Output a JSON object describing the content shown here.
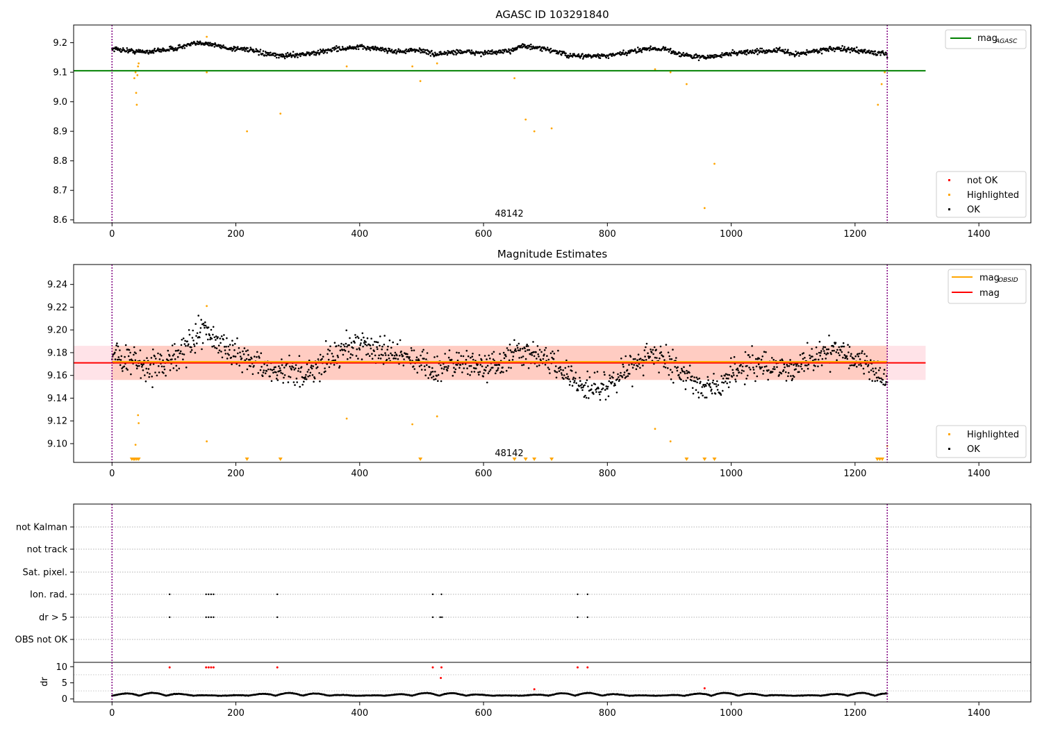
{
  "chart_data": [
    {
      "type": "scatter",
      "title": "AGASC ID 103291840",
      "annotation": "48142",
      "xlim": [
        -62,
        1484
      ],
      "ylim": [
        8.59,
        9.26
      ],
      "xticks": [
        0,
        200,
        400,
        600,
        800,
        1000,
        1200,
        1400
      ],
      "yticks": [
        8.6,
        8.7,
        8.8,
        8.9,
        9.0,
        9.1,
        9.2
      ],
      "ytick_labels": [
        "8.6",
        "8.7",
        "8.8",
        "8.9",
        "9.0",
        "9.1",
        "9.2"
      ],
      "vlines": [
        0,
        1252
      ],
      "line_legend": [
        {
          "main": "mag",
          "sub": "AGASC",
          "color": "#008000"
        }
      ],
      "marker_legend": [
        {
          "label": "not OK",
          "color": "#ff0000"
        },
        {
          "label": "Highlighted",
          "color": "#ffa500"
        },
        {
          "label": "OK",
          "color": "#000000"
        }
      ],
      "hline": {
        "y": 9.105,
        "x": [
          -62,
          1314
        ],
        "color": "#008000"
      },
      "ok_series": {
        "n": 1400,
        "x_range": [
          0,
          1252
        ],
        "wave": [
          [
            0,
            9.18
          ],
          [
            40,
            9.17
          ],
          [
            60,
            9.17
          ],
          [
            100,
            9.18
          ],
          [
            130,
            9.195
          ],
          [
            150,
            9.2
          ],
          [
            170,
            9.19
          ],
          [
            190,
            9.18
          ],
          [
            215,
            9.18
          ],
          [
            240,
            9.165
          ],
          [
            270,
            9.155
          ],
          [
            300,
            9.16
          ],
          [
            330,
            9.165
          ],
          [
            360,
            9.18
          ],
          [
            380,
            9.18
          ],
          [
            400,
            9.185
          ],
          [
            430,
            9.18
          ],
          [
            460,
            9.17
          ],
          [
            500,
            9.175
          ],
          [
            520,
            9.16
          ],
          [
            560,
            9.17
          ],
          [
            600,
            9.165
          ],
          [
            640,
            9.17
          ],
          [
            660,
            9.19
          ],
          [
            690,
            9.18
          ],
          [
            710,
            9.175
          ],
          [
            740,
            9.155
          ],
          [
            800,
            9.155
          ],
          [
            830,
            9.165
          ],
          [
            860,
            9.18
          ],
          [
            890,
            9.18
          ],
          [
            920,
            9.16
          ],
          [
            950,
            9.15
          ],
          [
            980,
            9.155
          ],
          [
            1000,
            9.165
          ],
          [
            1040,
            9.17
          ],
          [
            1080,
            9.175
          ],
          [
            1100,
            9.16
          ],
          [
            1130,
            9.17
          ],
          [
            1160,
            9.18
          ],
          [
            1200,
            9.175
          ],
          [
            1252,
            9.16
          ]
        ],
        "noise": 0.008
      },
      "highlighted": [
        [
          36,
          9.08
        ],
        [
          38,
          9.1
        ],
        [
          39,
          9.03
        ],
        [
          40,
          8.99
        ],
        [
          41,
          9.09
        ],
        [
          42,
          9.12
        ],
        [
          43,
          9.13
        ],
        [
          153,
          9.22
        ],
        [
          153,
          9.1
        ],
        [
          218,
          8.9
        ],
        [
          272,
          8.96
        ],
        [
          379,
          9.12
        ],
        [
          485,
          9.12
        ],
        [
          498,
          9.07
        ],
        [
          525,
          9.13
        ],
        [
          650,
          9.08
        ],
        [
          668,
          8.94
        ],
        [
          682,
          8.9
        ],
        [
          710,
          8.91
        ],
        [
          877,
          9.11
        ],
        [
          902,
          9.1
        ],
        [
          928,
          9.06
        ],
        [
          957,
          8.64
        ],
        [
          973,
          8.79
        ],
        [
          1237,
          8.99
        ],
        [
          1243,
          9.06
        ],
        [
          1248,
          9.1
        ]
      ]
    },
    {
      "type": "scatter",
      "title": "Magnitude Estimates",
      "annotation": "48142",
      "xlim": [
        -62,
        1484
      ],
      "ylim": [
        9.0835,
        9.2575
      ],
      "xticks": [
        0,
        200,
        400,
        600,
        800,
        1000,
        1200,
        1400
      ],
      "yticks": [
        9.1,
        9.12,
        9.14,
        9.16,
        9.18,
        9.2,
        9.22,
        9.24
      ],
      "ytick_labels": [
        "9.10",
        "9.12",
        "9.14",
        "9.16",
        "9.18",
        "9.20",
        "9.22",
        "9.24"
      ],
      "vlines": [
        0,
        1252
      ],
      "line_legend": [
        {
          "main": "mag",
          "sub": "OBSID",
          "color": "#ffa500"
        },
        {
          "main": "mag",
          "sub": "",
          "color": "#ff0000"
        }
      ],
      "marker_legend": [
        {
          "label": "Highlighted",
          "color": "#ffa500"
        },
        {
          "label": "OK",
          "color": "#000000"
        }
      ],
      "bands": [
        {
          "x": [
            -62,
            1314
          ],
          "y": [
            9.156,
            9.186
          ],
          "color": "#ffc0cb",
          "opacity": 0.45
        },
        {
          "x": [
            0,
            1252
          ],
          "y": [
            9.156,
            9.186
          ],
          "color": "#ffa07a",
          "opacity": 0.35
        }
      ],
      "hlines": [
        {
          "y": 9.171,
          "x": [
            -62,
            1314
          ],
          "color": "#ff0000"
        },
        {
          "y": 9.172,
          "x": [
            0,
            1252
          ],
          "color": "#ffa500"
        }
      ],
      "ok_series": {
        "n": 1400,
        "x_range": [
          0,
          1252
        ],
        "wave": [
          [
            0,
            9.18
          ],
          [
            30,
            9.175
          ],
          [
            60,
            9.165
          ],
          [
            90,
            9.17
          ],
          [
            110,
            9.18
          ],
          [
            130,
            9.19
          ],
          [
            150,
            9.2
          ],
          [
            170,
            9.19
          ],
          [
            200,
            9.18
          ],
          [
            230,
            9.17
          ],
          [
            260,
            9.165
          ],
          [
            290,
            9.16
          ],
          [
            320,
            9.165
          ],
          [
            350,
            9.175
          ],
          [
            380,
            9.185
          ],
          [
            410,
            9.185
          ],
          [
            440,
            9.18
          ],
          [
            470,
            9.175
          ],
          [
            500,
            9.17
          ],
          [
            520,
            9.16
          ],
          [
            540,
            9.17
          ],
          [
            580,
            9.17
          ],
          [
            620,
            9.165
          ],
          [
            650,
            9.18
          ],
          [
            680,
            9.18
          ],
          [
            700,
            9.175
          ],
          [
            730,
            9.165
          ],
          [
            760,
            9.15
          ],
          [
            790,
            9.15
          ],
          [
            820,
            9.16
          ],
          [
            850,
            9.17
          ],
          [
            870,
            9.18
          ],
          [
            890,
            9.175
          ],
          [
            920,
            9.16
          ],
          [
            950,
            9.15
          ],
          [
            980,
            9.15
          ],
          [
            1000,
            9.165
          ],
          [
            1040,
            9.17
          ],
          [
            1070,
            9.17
          ],
          [
            1100,
            9.165
          ],
          [
            1130,
            9.175
          ],
          [
            1160,
            9.18
          ],
          [
            1200,
            9.175
          ],
          [
            1230,
            9.165
          ],
          [
            1252,
            9.155
          ]
        ],
        "noise": 0.012
      },
      "highlighted": [
        [
          38,
          9.099
        ],
        [
          42,
          9.125
        ],
        [
          43,
          9.118
        ],
        [
          153,
          9.102
        ],
        [
          153,
          9.221
        ],
        [
          379,
          9.122
        ],
        [
          485,
          9.117
        ],
        [
          525,
          9.124
        ],
        [
          877,
          9.113
        ],
        [
          902,
          9.102
        ],
        [
          1252,
          9.098
        ]
      ],
      "lower_markers": [
        32,
        35,
        37,
        40,
        43,
        218,
        272,
        498,
        650,
        668,
        682,
        710,
        928,
        957,
        973,
        1236,
        1240,
        1244
      ]
    },
    {
      "type": "scatter",
      "title": "",
      "xlim": [
        -62,
        1484
      ],
      "xticks": [
        0,
        200,
        400,
        600,
        800,
        1000,
        1200,
        1400
      ],
      "vlines": [
        0,
        1252
      ],
      "flag_rows": [
        "not Kalman",
        "not track",
        "Sat. pixel.",
        "Ion. rad.",
        "dr > 5",
        "OBS not OK"
      ],
      "flag_points": [
        {
          "row": "Ion. rad.",
          "x": [
            93,
            152,
            156,
            160,
            164,
            267,
            518,
            532,
            752,
            768
          ]
        },
        {
          "row": "dr > 5",
          "x": [
            93,
            152,
            156,
            160,
            164,
            267,
            518,
            530,
            533,
            752,
            768
          ]
        }
      ],
      "dr": {
        "ylabel": "dr",
        "ylim": [
          -0.7,
          10.7
        ],
        "yticks": [
          0,
          5,
          10
        ],
        "minor_yticks": [
          2.5,
          7.5
        ],
        "flat_series": {
          "n": 1800,
          "x_range": [
            0,
            1252
          ],
          "base": 1.0,
          "amp": 0.8
        },
        "red_points": [
          [
            93,
            9.8
          ],
          [
            152,
            9.8
          ],
          [
            156,
            9.8
          ],
          [
            160,
            9.8
          ],
          [
            164,
            9.8
          ],
          [
            267,
            9.8
          ],
          [
            518,
            9.8
          ],
          [
            532,
            9.8
          ],
          [
            752,
            9.8
          ],
          [
            768,
            9.8
          ],
          [
            531,
            6.5
          ],
          [
            682,
            3.0
          ],
          [
            957,
            3.3
          ]
        ]
      }
    }
  ]
}
